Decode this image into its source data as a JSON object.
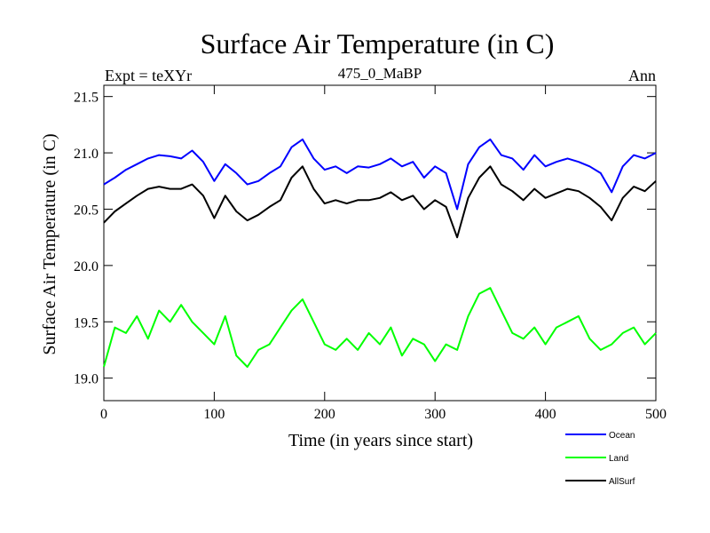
{
  "chart_data": {
    "type": "line",
    "title": "Surface Air Temperature (in C)",
    "header_left": "Expt = teXYr",
    "header_center": "475_0_MaBP",
    "header_right": "Ann",
    "xlabel": "Time (in years since start)",
    "ylabel": "Surface Air Temperature (in C)",
    "xlim": [
      0,
      500
    ],
    "ylim": [
      18.8,
      21.6
    ],
    "xticks": [
      0,
      100,
      200,
      300,
      400,
      500
    ],
    "yticks": [
      19.0,
      19.5,
      20.0,
      20.5,
      21.0,
      21.5
    ],
    "xtick_labels": [
      "0",
      "100",
      "200",
      "300",
      "400",
      "500"
    ],
    "ytick_labels": [
      "19.0",
      "19.5",
      "20.0",
      "20.5",
      "21.0",
      "21.5"
    ],
    "grid": false,
    "legend_position": "bottom-right, below plot",
    "series": [
      {
        "name": "Ocean",
        "color": "#0000ff",
        "x": [
          0,
          10,
          20,
          30,
          40,
          50,
          60,
          70,
          80,
          90,
          100,
          110,
          120,
          130,
          140,
          150,
          160,
          170,
          180,
          190,
          200,
          210,
          220,
          230,
          240,
          250,
          260,
          270,
          280,
          290,
          300,
          310,
          320,
          330,
          340,
          350,
          360,
          370,
          380,
          390,
          400,
          410,
          420,
          430,
          440,
          450,
          460,
          470,
          480,
          490,
          500
        ],
        "y": [
          20.72,
          20.78,
          20.85,
          20.9,
          20.95,
          20.98,
          20.97,
          20.95,
          21.02,
          20.92,
          20.75,
          20.9,
          20.82,
          20.72,
          20.75,
          20.82,
          20.88,
          21.05,
          21.12,
          20.95,
          20.85,
          20.88,
          20.82,
          20.88,
          20.87,
          20.9,
          20.95,
          20.88,
          20.92,
          20.78,
          20.88,
          20.82,
          20.5,
          20.9,
          21.05,
          21.12,
          20.98,
          20.95,
          20.85,
          20.98,
          20.88,
          20.92,
          20.95,
          20.92,
          20.88,
          20.82,
          20.65,
          20.88,
          20.98,
          20.95,
          21.0
        ]
      },
      {
        "name": "Land",
        "color": "#00ff00",
        "x": [
          0,
          10,
          20,
          30,
          40,
          50,
          60,
          70,
          80,
          90,
          100,
          110,
          120,
          130,
          140,
          150,
          160,
          170,
          180,
          190,
          200,
          210,
          220,
          230,
          240,
          250,
          260,
          270,
          280,
          290,
          300,
          310,
          320,
          330,
          340,
          350,
          360,
          370,
          380,
          390,
          400,
          410,
          420,
          430,
          440,
          450,
          460,
          470,
          480,
          490,
          500
        ],
        "y": [
          19.1,
          19.45,
          19.4,
          19.55,
          19.35,
          19.6,
          19.5,
          19.65,
          19.5,
          19.4,
          19.3,
          19.55,
          19.2,
          19.1,
          19.25,
          19.3,
          19.45,
          19.6,
          19.7,
          19.5,
          19.3,
          19.25,
          19.35,
          19.25,
          19.4,
          19.3,
          19.45,
          19.2,
          19.35,
          19.3,
          19.15,
          19.3,
          19.25,
          19.55,
          19.75,
          19.8,
          19.6,
          19.4,
          19.35,
          19.45,
          19.3,
          19.45,
          19.5,
          19.55,
          19.35,
          19.25,
          19.3,
          19.4,
          19.45,
          19.3,
          19.4
        ]
      },
      {
        "name": "AllSurf",
        "color": "#000000",
        "x": [
          0,
          10,
          20,
          30,
          40,
          50,
          60,
          70,
          80,
          90,
          100,
          110,
          120,
          130,
          140,
          150,
          160,
          170,
          180,
          190,
          200,
          210,
          220,
          230,
          240,
          250,
          260,
          270,
          280,
          290,
          300,
          310,
          320,
          330,
          340,
          350,
          360,
          370,
          380,
          390,
          400,
          410,
          420,
          430,
          440,
          450,
          460,
          470,
          480,
          490,
          500
        ],
        "y": [
          20.38,
          20.48,
          20.55,
          20.62,
          20.68,
          20.7,
          20.68,
          20.68,
          20.72,
          20.62,
          20.42,
          20.62,
          20.48,
          20.4,
          20.45,
          20.52,
          20.58,
          20.78,
          20.88,
          20.68,
          20.55,
          20.58,
          20.55,
          20.58,
          20.58,
          20.6,
          20.65,
          20.58,
          20.62,
          20.5,
          20.58,
          20.52,
          20.25,
          20.6,
          20.78,
          20.88,
          20.72,
          20.66,
          20.58,
          20.68,
          20.6,
          20.64,
          20.68,
          20.66,
          20.6,
          20.52,
          20.4,
          20.6,
          20.7,
          20.66,
          20.75
        ]
      }
    ]
  }
}
